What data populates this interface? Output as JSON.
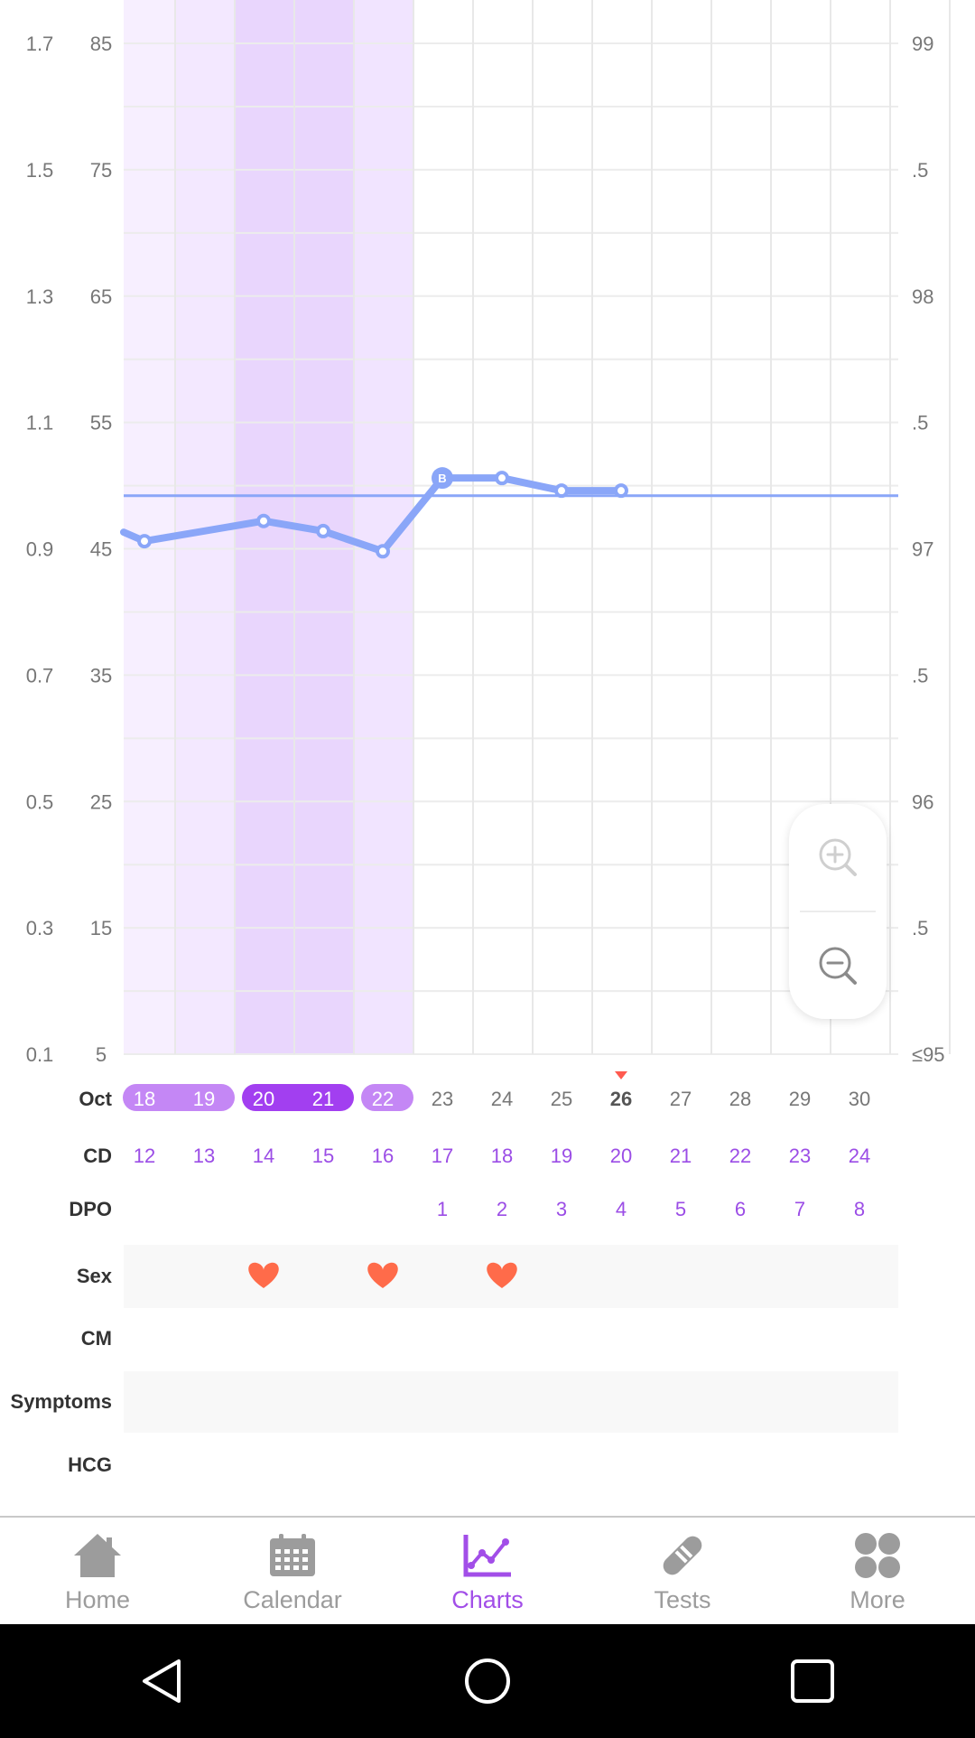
{
  "axes": {
    "left_outer": [
      "1.7",
      "1.5",
      "1.3",
      "1.1",
      "0.9",
      "0.7",
      "0.5",
      "0.3",
      "0.1"
    ],
    "left_inner": [
      "85",
      "75",
      "65",
      "55",
      "45",
      "35",
      "25",
      "15",
      "5"
    ],
    "right": [
      "99",
      ".5",
      "98",
      ".5",
      "97",
      ".5",
      "96",
      ".5",
      "≤95"
    ]
  },
  "days": [
    {
      "date": "18",
      "cd": "12",
      "dpo": ""
    },
    {
      "date": "19",
      "cd": "13",
      "dpo": ""
    },
    {
      "date": "20",
      "cd": "14",
      "dpo": ""
    },
    {
      "date": "21",
      "cd": "15",
      "dpo": ""
    },
    {
      "date": "22",
      "cd": "16",
      "dpo": ""
    },
    {
      "date": "23",
      "cd": "17",
      "dpo": "1"
    },
    {
      "date": "24",
      "cd": "18",
      "dpo": "2"
    },
    {
      "date": "25",
      "cd": "19",
      "dpo": "3"
    },
    {
      "date": "26",
      "cd": "20",
      "dpo": "4"
    },
    {
      "date": "27",
      "cd": "21",
      "dpo": "5"
    },
    {
      "date": "28",
      "cd": "22",
      "dpo": "6"
    },
    {
      "date": "29",
      "cd": "23",
      "dpo": "7"
    },
    {
      "date": "30",
      "cd": "24",
      "dpo": "8"
    }
  ],
  "row_labels": {
    "month": "Oct",
    "cd": "CD",
    "dpo": "DPO",
    "sex": "Sex",
    "cm": "CM",
    "symptoms": "Symptoms",
    "hcg": "HCG"
  },
  "today_date": "26",
  "sex_days": [
    "20",
    "22",
    "24"
  ],
  "marker_label": "B",
  "chart_data": {
    "type": "line",
    "title": "",
    "x": [
      "Oct 18",
      "Oct 20",
      "Oct 21",
      "Oct 22",
      "Oct 23",
      "Oct 24",
      "Oct 25",
      "Oct 26"
    ],
    "series": [
      {
        "values": [
          97.03,
          97.11,
          97.07,
          96.99,
          97.28,
          97.28,
          97.23,
          97.23
        ]
      }
    ],
    "coverline": 97.21,
    "ylim_temperature": [
      95,
      99
    ],
    "ylim_left_outer": [
      0.1,
      1.7
    ],
    "ylim_left_inner": [
      5,
      85
    ],
    "grid": true
  },
  "zoom": {
    "in_icon": "zoom-in-icon",
    "out_icon": "zoom-out-icon"
  },
  "nav": {
    "items": [
      {
        "label": "Home",
        "icon": "home-icon"
      },
      {
        "label": "Calendar",
        "icon": "calendar-icon"
      },
      {
        "label": "Charts",
        "icon": "charts-icon",
        "active": true
      },
      {
        "label": "Tests",
        "icon": "test-strip-icon"
      },
      {
        "label": "More",
        "icon": "more-grid-icon"
      }
    ]
  },
  "colors": {
    "accent": "#a24ee8",
    "line": "#8aa6f8",
    "heart": "#ff6b4a",
    "today_marker": "#ff5a4f"
  }
}
